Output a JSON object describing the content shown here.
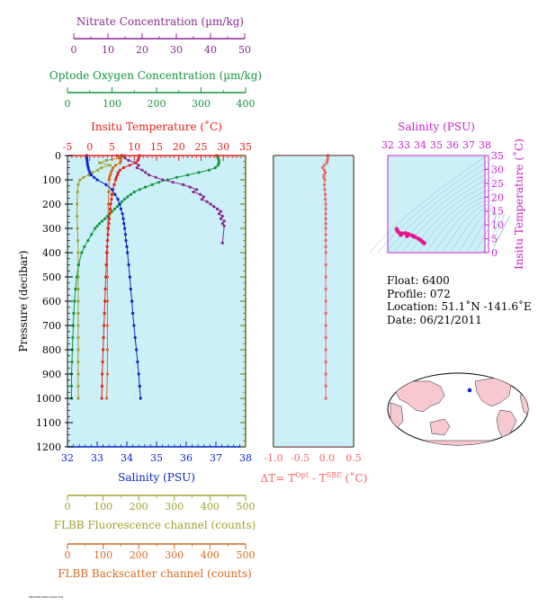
{
  "chart_data": {
    "type": "scatter",
    "colors": {
      "temperature": "#e8201a",
      "salinity": "#0a24c8",
      "oxygen": "#10963a",
      "nitrate": "#8a2a8e",
      "fluorescence": "#a0a030",
      "backscatter": "#d66a1e",
      "delta_t": "#f06a6a",
      "ts_inset": "#e8148c",
      "plot_bg": "#ccf0f8",
      "inset_border": "#cc22cc",
      "axis_olive": "#6b6b12"
    },
    "nitrate_axis": {
      "label": "Nitrate Concentration (µm/kg)",
      "ticks": [
        "0",
        "10",
        "20",
        "30",
        "40",
        "50"
      ],
      "range": [
        0,
        50
      ]
    },
    "oxygen_axis": {
      "label": "Optode Oxygen Concentration (µm/kg)",
      "ticks": [
        "0",
        "100",
        "200",
        "300",
        "400"
      ],
      "range": [
        0,
        400
      ]
    },
    "temperature_axis": {
      "label": "Insitu Temperature (˚C)",
      "ticks": [
        "-5",
        "0",
        "5",
        "10",
        "15",
        "20",
        "25",
        "30",
        "35"
      ],
      "range": [
        -5,
        35
      ]
    },
    "salinity_axis": {
      "label": "Salinity (PSU)",
      "ticks": [
        "32",
        "33",
        "34",
        "35",
        "36",
        "37",
        "38"
      ],
      "range": [
        32,
        38
      ]
    },
    "pressure_axis": {
      "label": "Pressure (decibar)",
      "ticks": [
        "0",
        "100",
        "200",
        "300",
        "400",
        "500",
        "600",
        "700",
        "800",
        "900",
        "1000",
        "1100",
        "1200"
      ],
      "range": [
        0,
        1200
      ]
    },
    "fluorescence_axis": {
      "label": "FLBB Fluorescence channel (counts)",
      "ticks": [
        "0",
        "100",
        "200",
        "300",
        "400",
        "500"
      ],
      "range": [
        0,
        500
      ]
    },
    "backscatter_axis": {
      "label": "FLBB Backscatter channel (counts)",
      "ticks": [
        "0",
        "100",
        "200",
        "300",
        "400",
        "500"
      ],
      "range": [
        0,
        500
      ]
    },
    "delta_axis": {
      "label_prefix": "ΔT= T",
      "label_sup1": "Opt",
      "label_mid": " - T",
      "label_sup2": "SBE",
      "label_suffix": " (˚C)",
      "ticks": [
        "-1.0",
        "-0.5",
        "0.0",
        "0.5"
      ],
      "range": [
        -1.0,
        0.5
      ]
    },
    "inset": {
      "x_label": "Salinity (PSU)",
      "x_ticks": [
        "32",
        "33",
        "34",
        "35",
        "36",
        "37",
        "38"
      ],
      "x_range": [
        32,
        38
      ],
      "y_label": "Insitu Temperature (˚C)",
      "y_ticks": [
        "0",
        "5",
        "10",
        "15",
        "20",
        "25",
        "30",
        "35"
      ],
      "y_range": [
        0,
        35
      ],
      "ts_points": [
        [
          32.55,
          8.5
        ],
        [
          32.6,
          7.8
        ],
        [
          32.7,
          7.2
        ],
        [
          32.9,
          6.9
        ],
        [
          33.1,
          7.0
        ],
        [
          33.3,
          6.6
        ],
        [
          33.5,
          6.2
        ],
        [
          33.7,
          5.6
        ],
        [
          33.9,
          5.0
        ],
        [
          34.05,
          4.4
        ],
        [
          34.15,
          3.9
        ],
        [
          34.25,
          3.4
        ],
        [
          32.8,
          6.4
        ],
        [
          33.2,
          6.0
        ],
        [
          33.6,
          5.9
        ]
      ]
    },
    "temperature_profile": [
      [
        0,
        11.2
      ],
      [
        10,
        11.0
      ],
      [
        20,
        10.8
      ],
      [
        30,
        10.4
      ],
      [
        40,
        9.0
      ],
      [
        50,
        7.6
      ],
      [
        60,
        6.8
      ],
      [
        70,
        6.4
      ],
      [
        80,
        6.2
      ],
      [
        90,
        6.0
      ],
      [
        100,
        5.8
      ],
      [
        120,
        5.5
      ],
      [
        140,
        5.2
      ],
      [
        160,
        5.0
      ],
      [
        180,
        4.9
      ],
      [
        200,
        4.7
      ],
      [
        220,
        4.6
      ],
      [
        240,
        4.5
      ],
      [
        260,
        4.4
      ],
      [
        280,
        4.3
      ],
      [
        300,
        4.2
      ],
      [
        325,
        4.1
      ],
      [
        350,
        4.0
      ],
      [
        375,
        3.9
      ],
      [
        400,
        3.8
      ],
      [
        450,
        3.7
      ],
      [
        500,
        3.6
      ],
      [
        550,
        3.5
      ],
      [
        600,
        3.4
      ],
      [
        650,
        3.3
      ],
      [
        700,
        3.2
      ],
      [
        750,
        3.1
      ],
      [
        800,
        3.0
      ],
      [
        850,
        2.9
      ],
      [
        900,
        2.8
      ],
      [
        950,
        2.75
      ],
      [
        1000,
        2.7
      ]
    ],
    "salinity_profile": [
      [
        0,
        32.65
      ],
      [
        10,
        32.65
      ],
      [
        20,
        32.66
      ],
      [
        30,
        32.67
      ],
      [
        40,
        32.68
      ],
      [
        50,
        32.7
      ],
      [
        60,
        32.72
      ],
      [
        70,
        32.75
      ],
      [
        80,
        32.8
      ],
      [
        90,
        32.9
      ],
      [
        100,
        33.0
      ],
      [
        120,
        33.3
      ],
      [
        140,
        33.5
      ],
      [
        160,
        33.6
      ],
      [
        180,
        33.7
      ],
      [
        200,
        33.75
      ],
      [
        220,
        33.8
      ],
      [
        240,
        33.85
      ],
      [
        260,
        33.88
      ],
      [
        280,
        33.9
      ],
      [
        300,
        33.93
      ],
      [
        325,
        33.95
      ],
      [
        350,
        33.97
      ],
      [
        375,
        34.0
      ],
      [
        400,
        34.02
      ],
      [
        450,
        34.06
      ],
      [
        500,
        34.1
      ],
      [
        550,
        34.13
      ],
      [
        600,
        34.17
      ],
      [
        650,
        34.2
      ],
      [
        700,
        34.24
      ],
      [
        750,
        34.28
      ],
      [
        800,
        34.32
      ],
      [
        850,
        34.36
      ],
      [
        900,
        34.4
      ],
      [
        950,
        34.43
      ],
      [
        1000,
        34.46
      ]
    ],
    "oxygen_profile": [
      [
        0,
        335
      ],
      [
        10,
        338
      ],
      [
        20,
        340
      ],
      [
        30,
        340
      ],
      [
        40,
        338
      ],
      [
        50,
        332
      ],
      [
        60,
        318
      ],
      [
        70,
        295
      ],
      [
        80,
        270
      ],
      [
        90,
        245
      ],
      [
        100,
        225
      ],
      [
        110,
        205
      ],
      [
        120,
        190
      ],
      [
        130,
        175
      ],
      [
        140,
        162
      ],
      [
        150,
        150
      ],
      [
        160,
        142
      ],
      [
        170,
        135
      ],
      [
        180,
        128
      ],
      [
        190,
        122
      ],
      [
        200,
        118
      ],
      [
        210,
        112
      ],
      [
        220,
        106
      ],
      [
        230,
        100
      ],
      [
        240,
        95
      ],
      [
        250,
        90
      ],
      [
        260,
        84
      ],
      [
        270,
        78
      ],
      [
        280,
        72
      ],
      [
        290,
        67
      ],
      [
        300,
        62
      ],
      [
        325,
        54
      ],
      [
        350,
        46
      ],
      [
        375,
        38
      ],
      [
        400,
        32
      ],
      [
        450,
        25
      ],
      [
        500,
        21
      ],
      [
        550,
        18
      ],
      [
        600,
        16
      ],
      [
        650,
        14
      ],
      [
        700,
        13
      ],
      [
        750,
        12
      ],
      [
        800,
        11
      ],
      [
        850,
        10
      ],
      [
        900,
        9
      ],
      [
        950,
        9
      ],
      [
        1000,
        9
      ]
    ],
    "nitrate_profile": [
      [
        0,
        14
      ],
      [
        10,
        15
      ],
      [
        20,
        16
      ],
      [
        30,
        18
      ],
      [
        40,
        19
      ],
      [
        50,
        18.5
      ],
      [
        60,
        20
      ],
      [
        70,
        21
      ],
      [
        80,
        22
      ],
      [
        90,
        24
      ],
      [
        100,
        26
      ],
      [
        110,
        29
      ],
      [
        120,
        32
      ],
      [
        130,
        34
      ],
      [
        140,
        36
      ],
      [
        150,
        35
      ],
      [
        160,
        37
      ],
      [
        170,
        38
      ],
      [
        180,
        37.5
      ],
      [
        190,
        39
      ],
      [
        200,
        40
      ],
      [
        210,
        41
      ],
      [
        220,
        42
      ],
      [
        230,
        43
      ],
      [
        240,
        42.5
      ],
      [
        250,
        43.5
      ],
      [
        260,
        43
      ],
      [
        270,
        44
      ],
      [
        280,
        43.5
      ],
      [
        290,
        44
      ],
      [
        360,
        43.5
      ]
    ],
    "fluorescence_profile": [
      [
        0,
        160
      ],
      [
        10,
        150
      ],
      [
        20,
        110
      ],
      [
        30,
        90
      ],
      [
        40,
        120
      ],
      [
        50,
        95
      ],
      [
        60,
        85
      ],
      [
        70,
        70
      ],
      [
        80,
        60
      ],
      [
        90,
        45
      ],
      [
        100,
        35
      ],
      [
        120,
        30
      ],
      [
        150,
        28
      ],
      [
        200,
        27
      ],
      [
        250,
        27
      ],
      [
        300,
        28
      ],
      [
        350,
        29
      ],
      [
        400,
        30
      ],
      [
        450,
        30
      ],
      [
        500,
        30
      ],
      [
        550,
        30
      ],
      [
        600,
        30
      ],
      [
        650,
        30
      ],
      [
        700,
        30
      ],
      [
        750,
        30
      ],
      [
        800,
        30
      ],
      [
        850,
        30
      ],
      [
        900,
        30
      ],
      [
        950,
        30
      ],
      [
        1000,
        30
      ]
    ],
    "backscatter_profile": [
      [
        0,
        140
      ],
      [
        10,
        145
      ],
      [
        20,
        150
      ],
      [
        30,
        148
      ],
      [
        40,
        135
      ],
      [
        50,
        128
      ],
      [
        60,
        125
      ],
      [
        70,
        122
      ],
      [
        80,
        120
      ],
      [
        90,
        118
      ],
      [
        100,
        117
      ],
      [
        150,
        116
      ],
      [
        200,
        115
      ],
      [
        250,
        114
      ],
      [
        300,
        113
      ],
      [
        350,
        112
      ],
      [
        400,
        112
      ],
      [
        500,
        112
      ],
      [
        600,
        112
      ],
      [
        700,
        112
      ],
      [
        800,
        112
      ],
      [
        900,
        112
      ],
      [
        1000,
        110
      ]
    ],
    "delta_t_profile": [
      [
        0,
        0.02
      ],
      [
        10,
        0.02
      ],
      [
        20,
        0.01
      ],
      [
        30,
        0.0
      ],
      [
        40,
        -0.05
      ],
      [
        50,
        -0.08
      ],
      [
        60,
        -0.05
      ],
      [
        70,
        -0.03
      ],
      [
        80,
        -0.05
      ],
      [
        90,
        -0.06
      ],
      [
        100,
        -0.04
      ],
      [
        120,
        -0.05
      ],
      [
        140,
        -0.04
      ],
      [
        160,
        -0.03
      ],
      [
        180,
        -0.03
      ],
      [
        200,
        -0.02
      ],
      [
        220,
        -0.02
      ],
      [
        240,
        -0.02
      ],
      [
        260,
        -0.02
      ],
      [
        280,
        -0.02
      ],
      [
        300,
        -0.02
      ],
      [
        325,
        -0.02
      ],
      [
        350,
        -0.02
      ],
      [
        375,
        -0.02
      ],
      [
        400,
        -0.02
      ],
      [
        450,
        -0.02
      ],
      [
        500,
        -0.02
      ],
      [
        550,
        -0.02
      ],
      [
        600,
        -0.02
      ],
      [
        650,
        -0.02
      ],
      [
        700,
        -0.02
      ],
      [
        750,
        -0.02
      ],
      [
        800,
        -0.02
      ],
      [
        850,
        -0.02
      ],
      [
        900,
        -0.02
      ],
      [
        950,
        -0.02
      ],
      [
        1000,
        -0.02
      ]
    ]
  },
  "info": {
    "float": "Float:  6400",
    "profile": "Profile:  072",
    "location": "Location:  51.1˚N  -141.6˚E",
    "date": "Date:  06/21/2011"
  }
}
